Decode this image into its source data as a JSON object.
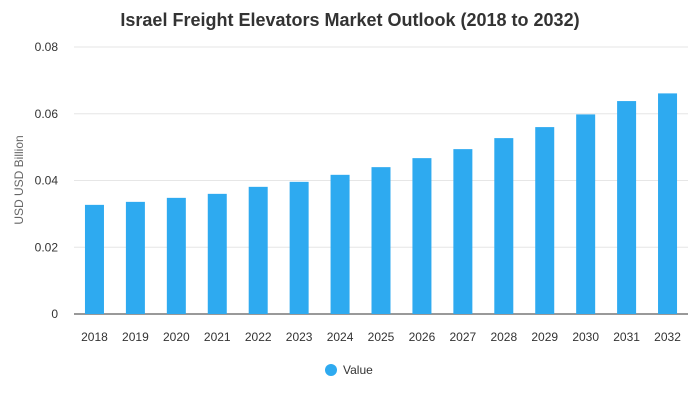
{
  "chart_data": {
    "type": "bar",
    "title": "Israel Freight Elevators Market Outlook (2018 to 2032)",
    "xlabel": "",
    "ylabel": "USD USD Billion",
    "ylim": [
      0,
      0.08
    ],
    "yticks": [
      "0",
      "0.02",
      "0.04",
      "0.06",
      "0.08"
    ],
    "ytick_values": [
      0,
      0.02,
      0.04,
      0.06,
      0.08
    ],
    "grid": true,
    "legend_position": "bottom-center",
    "categories": [
      "2018",
      "2019",
      "2020",
      "2021",
      "2022",
      "2023",
      "2024",
      "2025",
      "2026",
      "2027",
      "2028",
      "2029",
      "2030",
      "2031",
      "2032"
    ],
    "series": [
      {
        "name": "Value",
        "color": "#2eaaf0",
        "values": [
          0.0327,
          0.0336,
          0.0348,
          0.036,
          0.0381,
          0.0396,
          0.0417,
          0.044,
          0.0467,
          0.0494,
          0.0527,
          0.056,
          0.0598,
          0.0638,
          0.0661
        ]
      }
    ]
  }
}
